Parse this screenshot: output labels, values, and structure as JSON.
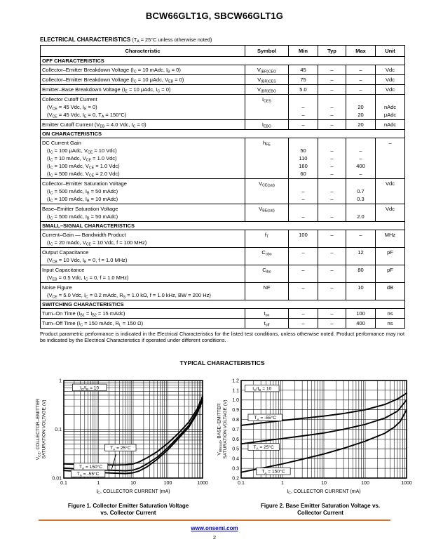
{
  "page": {
    "title": "BCW66GLT1G, SBCW66GLT1G",
    "section_heading": "ELECTRICAL CHARACTERISTICS",
    "section_heading_note": "(T[s]A[/s] = 25°C unless otherwise noted)",
    "footnote": "Product parametric performance is indicated in the Electrical Characteristics for the listed test conditions, unless otherwise noted. Product performance may not be indicated by the Electrical Characteristics if operated under different conditions.",
    "typical_heading": "TYPICAL CHARACTERISTICS",
    "footer": {
      "link": "www.onsemi.com",
      "page_number": "2",
      "rule_color": "#d2752b",
      "link_color": "#0000cc"
    }
  },
  "table": {
    "headers": [
      "Characteristic",
      "Symbol",
      "Min",
      "Typ",
      "Max",
      "Unit"
    ],
    "sections": [
      {
        "title": "OFF CHARACTERISTICS",
        "rows": [
          {
            "lines": [
              "Collector–Emitter Breakdown Voltage (I[s]C[/s] = 10 mAdc, I[s]B[/s] = 0)"
            ],
            "symbol": "V[s](BR)CEO[/s]",
            "min": [
              "45"
            ],
            "typ": [
              "–"
            ],
            "max": [
              "–"
            ],
            "unit": [
              "Vdc"
            ]
          },
          {
            "lines": [
              "Collector–Emitter Breakdown Voltage (I[s]C[/s] = 10 μAdc, V[s]EB[/s] = 0)"
            ],
            "symbol": "V[s](BR)CES[/s]",
            "min": [
              "75"
            ],
            "typ": [
              "–"
            ],
            "max": [
              "–"
            ],
            "unit": [
              "Vdc"
            ]
          },
          {
            "lines": [
              "Emitter–Base Breakdown Voltage (I[s]E[/s] = 10 μAdc, I[s]C[/s] = 0)"
            ],
            "symbol": "V[s](BR)EBO[/s]",
            "min": [
              "5.0"
            ],
            "typ": [
              "–"
            ],
            "max": [
              "–"
            ],
            "unit": [
              "Vdc"
            ]
          },
          {
            "lines": [
              "Collector Cutoff Current",
              "(V[s]CE[/s] = 45 Vdc, I[s]E[/s] = 0)",
              "(V[s]CE[/s] = 45 Vdc, I[s]E[/s] = 0, T[s]A[/s] = 150°C)"
            ],
            "symbol": "I[s]CES[/s]",
            "min": [
              "",
              "–",
              "–"
            ],
            "typ": [
              "",
              "–",
              "–"
            ],
            "max": [
              "",
              "20",
              "20"
            ],
            "unit": [
              "",
              "nAdc",
              "μAdc"
            ]
          },
          {
            "lines": [
              "Emitter Cutoff Current (V[s]EB[/s] = 4.0 Vdc, I[s]C[/s] = 0)"
            ],
            "symbol": "I[s]EBO[/s]",
            "min": [
              "–"
            ],
            "typ": [
              "–"
            ],
            "max": [
              "20"
            ],
            "unit": [
              "nAdc"
            ]
          }
        ]
      },
      {
        "title": "ON CHARACTERISTICS",
        "rows": [
          {
            "lines": [
              "DC Current Gain",
              "(I[s]C[/s] = 100 μAdc, V[s]CE[/s] = 10 Vdc)",
              "(I[s]C[/s] = 10 mAdc, V[s]CE[/s] = 1.0 Vdc)",
              "(I[s]C[/s] = 100 mAdc, V[s]CE[/s] = 1.0 Vdc)",
              "(I[s]C[/s] = 500 mAdc, V[s]CE[/s] = 2.0 Vdc)"
            ],
            "symbol": "h[s]FE[/s]",
            "min": [
              "",
              "50",
              "110",
              "160",
              "60"
            ],
            "typ": [
              "",
              "–",
              "–",
              "–",
              "–"
            ],
            "max": [
              "",
              "–",
              "–",
              "400",
              "–"
            ],
            "unit": [
              "–"
            ]
          },
          {
            "lines": [
              "Collector–Emitter Saturation Voltage",
              "(I[s]C[/s] = 500 mAdc, I[s]B[/s] = 50 mAdc)",
              "(I[s]C[/s] = 100 mAdc, I[s]B[/s] = 10 mAdc)"
            ],
            "symbol": "V[s]CE(sat)[/s]",
            "min": [
              "",
              "–",
              "–"
            ],
            "typ": [
              "",
              "–",
              "–"
            ],
            "max": [
              "",
              "0.7",
              "0.3"
            ],
            "unit": [
              "Vdc"
            ]
          },
          {
            "lines": [
              "Base–Emitter Saturation Voltage",
              "(I[s]C[/s] = 500 mAdc, I[s]B[/s] = 50 mAdc)"
            ],
            "symbol": "V[s]BE(sat)[/s]",
            "min": [
              "",
              "–"
            ],
            "typ": [
              "",
              "–"
            ],
            "max": [
              "",
              "2.0"
            ],
            "unit": [
              "Vdc"
            ]
          }
        ]
      },
      {
        "title": "SMALL–SIGNAL CHARACTERISTICS",
        "rows": [
          {
            "lines": [
              "Current–Gain — Bandwidth Product",
              "(I[s]C[/s] = 20 mAdc, V[s]CE[/s] = 10 Vdc, f = 100 MHz)"
            ],
            "symbol": "f[s]T[/s]",
            "min": [
              "100"
            ],
            "typ": [
              "–"
            ],
            "max": [
              "–"
            ],
            "unit": [
              "MHz"
            ]
          },
          {
            "lines": [
              "Output Capacitance",
              "(V[s]CB[/s] = 10 Vdc, I[s]E[/s] = 0, f = 1.0 MHz)"
            ],
            "symbol": "C[s]obo[/s]",
            "min": [
              "–"
            ],
            "typ": [
              "–"
            ],
            "max": [
              "12"
            ],
            "unit": [
              "pF"
            ]
          },
          {
            "lines": [
              "Input Capacitance",
              "(V[s]EB[/s] = 0.5 Vdc, I[s]C[/s] = 0, f = 1.0 MHz)"
            ],
            "symbol": "C[s]ibo[/s]",
            "min": [
              "–"
            ],
            "typ": [
              "–"
            ],
            "max": [
              "80"
            ],
            "unit": [
              "pF"
            ]
          },
          {
            "lines": [
              "Noise Figure",
              "(V[s]CE[/s] = 5.0 Vdc, I[s]C[/s] = 0.2 mAdc, R[s]S[/s] = 1.0 kΩ, f = 1.0 kHz, BW = 200 Hz)"
            ],
            "symbol": "NF",
            "min": [
              "–"
            ],
            "typ": [
              "–"
            ],
            "max": [
              "10"
            ],
            "unit": [
              "dB"
            ]
          }
        ]
      },
      {
        "title": "SWITCHING CHARACTERISTICS",
        "rows": [
          {
            "lines": [
              "Turn–On Time (I[s]B1[/s] = I[s]B2[/s] = 15 mAdc)"
            ],
            "symbol": "t[s]on[/s]",
            "min": [
              "–"
            ],
            "typ": [
              "–"
            ],
            "max": [
              "100"
            ],
            "unit": [
              "ns"
            ]
          },
          {
            "lines": [
              "Turn–Off Time (I[s]C[/s] = 150 mAdc, R[s]L[/s] = 150 Ω)"
            ],
            "symbol": "t[s]off[/s]",
            "min": [
              "–"
            ],
            "typ": [
              "–"
            ],
            "max": [
              "400"
            ],
            "unit": [
              "ns"
            ]
          }
        ]
      }
    ]
  },
  "chart_data": [
    {
      "type": "line",
      "caption_line1": "Figure 1. Collector Emitter Saturation Voltage",
      "caption_line2": "vs. Collector Current",
      "xlabel": "I[s]C[/s], COLLECTOR CURRENT (mA)",
      "ylabel_line1": "V[s]CE[/s], COLLECTOR–EMITTER",
      "ylabel_line2": "SATURATION VOLTAGE (V)",
      "xscale": "log",
      "yscale": "log",
      "xlim": [
        0.1,
        1000
      ],
      "ylim": [
        0.01,
        1
      ],
      "grid": true,
      "legend_position": "inline-boxes",
      "xticks": [
        [
          0.1,
          "0.1"
        ],
        [
          1,
          "1"
        ],
        [
          10,
          "10"
        ],
        [
          100,
          "100"
        ],
        [
          1000,
          "1000"
        ]
      ],
      "yticks": [
        [
          0.01,
          "0.01"
        ],
        [
          0.1,
          "0.1"
        ],
        [
          1,
          "1"
        ]
      ],
      "series": [
        {
          "name": "T[s]A[/s] = 150°C",
          "points": [
            [
              0.1,
              0.0195
            ],
            [
              0.3,
              0.019
            ],
            [
              1,
              0.0188
            ],
            [
              3,
              0.0185
            ],
            [
              6,
              0.0187
            ],
            [
              10,
              0.0195
            ],
            [
              15,
              0.0215
            ],
            [
              25,
              0.026
            ],
            [
              50,
              0.035
            ],
            [
              100,
              0.052
            ],
            [
              200,
              0.082
            ],
            [
              400,
              0.14
            ],
            [
              700,
              0.26
            ],
            [
              1000,
              0.48
            ]
          ]
        },
        {
          "name": "T[s]A[/s] = 25°C",
          "points": [
            [
              0.1,
              0.016
            ],
            [
              0.3,
              0.0153
            ],
            [
              1,
              0.0148
            ],
            [
              3,
              0.0144
            ],
            [
              6,
              0.0141
            ],
            [
              10,
              0.0146
            ],
            [
              15,
              0.016
            ],
            [
              25,
              0.0195
            ],
            [
              50,
              0.027
            ],
            [
              100,
              0.042
            ],
            [
              200,
              0.07
            ],
            [
              400,
              0.12
            ],
            [
              700,
              0.23
            ],
            [
              1000,
              0.43
            ]
          ]
        },
        {
          "name": "T[s]A[/s] = -55°C",
          "points": [
            [
              0.1,
              0.0143
            ],
            [
              0.3,
              0.0136
            ],
            [
              1,
              0.013
            ],
            [
              3,
              0.0126
            ],
            [
              6,
              0.0124
            ],
            [
              10,
              0.0128
            ],
            [
              15,
              0.014
            ],
            [
              25,
              0.017
            ],
            [
              50,
              0.0245
            ],
            [
              100,
              0.038
            ],
            [
              200,
              0.064
            ],
            [
              400,
              0.11
            ],
            [
              700,
              0.21
            ],
            [
              1000,
              0.39
            ]
          ]
        }
      ],
      "annotations": [
        {
          "text": "I[s]C[/s]/I[s]B[/s] = 10",
          "x": 0.55,
          "y": 0.72
        },
        {
          "text": "T[s]A[/s] = 25°C",
          "x": 4.3,
          "y": 0.042,
          "leader": [
            [
              3.2,
              0.031
            ],
            [
              2.4,
              0.0152
            ]
          ]
        },
        {
          "text": "T[s]A[/s] = 150°C",
          "x": 0.6,
          "y": 0.0172
        },
        {
          "text": "T[s]A[/s] = -55°C",
          "x": 0.5,
          "y": 0.0124
        }
      ]
    },
    {
      "type": "line",
      "caption_line1": "Figure 2. Base Emitter Saturation Voltage vs.",
      "caption_line2": "Collector Current",
      "xlabel": "I[s]C[/s], COLLECTOR CURRENT (mA)",
      "ylabel_line1": "V[s]BE(sat)[/s], BASE–EMITTER",
      "ylabel_line2": "SATURATION VOLTAGE (V)",
      "xscale": "log",
      "yscale": "linear",
      "xlim": [
        0.1,
        1000
      ],
      "ylim": [
        0.2,
        1.2
      ],
      "grid": true,
      "legend_position": "inline-boxes",
      "xticks": [
        [
          0.1,
          "0.1"
        ],
        [
          1,
          "1"
        ],
        [
          10,
          "10"
        ],
        [
          100,
          "100"
        ],
        [
          1000,
          "1000"
        ]
      ],
      "yticks": [
        [
          1.2,
          "1.2"
        ],
        [
          1.1,
          "1.1"
        ],
        [
          1.0,
          "1.0"
        ],
        [
          0.9,
          "0.9"
        ],
        [
          0.8,
          "0.8"
        ],
        [
          0.7,
          "0.7"
        ],
        [
          0.6,
          "0.6"
        ],
        [
          0.5,
          "0.5"
        ],
        [
          0.4,
          "0.4"
        ],
        [
          0.3,
          "0.3"
        ],
        [
          0.2,
          "0.2"
        ]
      ],
      "series": [
        {
          "name": "T[s]A[/s] = -55°C",
          "points": [
            [
              0.1,
              0.74
            ],
            [
              0.3,
              0.765
            ],
            [
              1,
              0.79
            ],
            [
              3,
              0.812
            ],
            [
              10,
              0.835
            ],
            [
              30,
              0.862
            ],
            [
              100,
              0.9
            ],
            [
              300,
              0.955
            ],
            [
              600,
              1.01
            ],
            [
              1000,
              1.07
            ]
          ]
        },
        {
          "name": "T[s]A[/s] = 25°C",
          "points": [
            [
              0.1,
              0.55
            ],
            [
              0.3,
              0.578
            ],
            [
              1,
              0.605
            ],
            [
              3,
              0.632
            ],
            [
              10,
              0.662
            ],
            [
              30,
              0.7
            ],
            [
              100,
              0.75
            ],
            [
              300,
              0.815
            ],
            [
              600,
              0.885
            ],
            [
              1000,
              1.0
            ]
          ]
        },
        {
          "name": "T[s]A[/s] = 150°C",
          "points": [
            [
              0.1,
              0.26
            ],
            [
              0.3,
              0.3
            ],
            [
              1,
              0.345
            ],
            [
              3,
              0.393
            ],
            [
              10,
              0.447
            ],
            [
              30,
              0.505
            ],
            [
              100,
              0.578
            ],
            [
              300,
              0.66
            ],
            [
              500,
              0.72
            ],
            [
              700,
              0.78
            ],
            [
              1000,
              0.9
            ]
          ]
        }
      ],
      "annotations": [
        {
          "text": "I[s]C[/s]/I[s]B[/s] = 10",
          "x": 0.32,
          "y": 1.12
        },
        {
          "text": "T[s]A[/s] = -55°C",
          "x": 0.38,
          "y": 0.82
        },
        {
          "text": "T[s]A[/s] = 25°C",
          "x": 0.35,
          "y": 0.52
        },
        {
          "text": "T[s]A[/s] = 150°C",
          "x": 0.6,
          "y": 0.27
        }
      ]
    }
  ]
}
